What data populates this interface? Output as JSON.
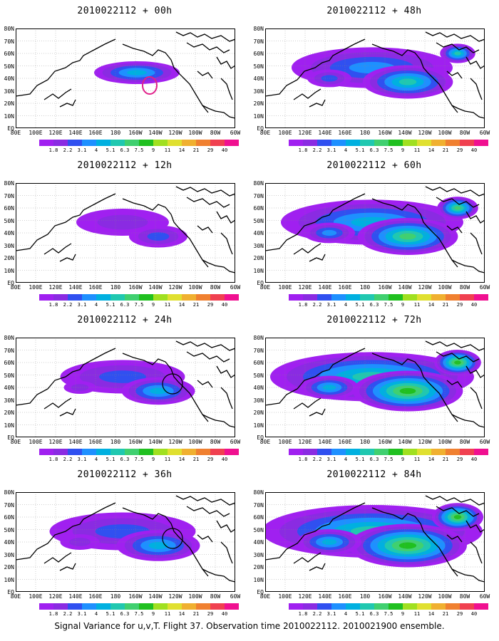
{
  "panels": [
    {
      "title": "2010022112 + 00h",
      "intensity": 0.15
    },
    {
      "title": "2010022112 + 12h",
      "intensity": 0.3
    },
    {
      "title": "2010022112 + 24h",
      "intensity": 0.45
    },
    {
      "title": "2010022112 + 36h",
      "intensity": 0.55
    },
    {
      "title": "2010022112 + 48h",
      "intensity": 0.62
    },
    {
      "title": "2010022112 + 60h",
      "intensity": 0.72
    },
    {
      "title": "2010022112 + 72h",
      "intensity": 0.82
    },
    {
      "title": "2010022112 + 84h",
      "intensity": 0.9
    }
  ],
  "lat_labels": [
    "80N",
    "70N",
    "60N",
    "50N",
    "40N",
    "30N",
    "20N",
    "10N",
    "EQ"
  ],
  "lon_labels": [
    "80E",
    "100E",
    "120E",
    "140E",
    "160E",
    "180",
    "160W",
    "140W",
    "120W",
    "100W",
    "80W",
    "60W"
  ],
  "colorbar": {
    "labels": [
      "1.8",
      "2.2",
      "3.1",
      "4",
      "5.1",
      "6.3",
      "7.5",
      "9",
      "11",
      "14",
      "21",
      "29",
      "40"
    ],
    "colors": [
      "#a020f0",
      "#8a2be2",
      "#3050f0",
      "#1e90ff",
      "#00b0e0",
      "#20c8b0",
      "#40d070",
      "#20c020",
      "#a0e020",
      "#e0e030",
      "#f0b030",
      "#f08030",
      "#f04050",
      "#f01090"
    ]
  },
  "footer": "Signal Variance for u,v,T. Flight 37. Observation time 2010022112. 2010021900 ensemble."
}
